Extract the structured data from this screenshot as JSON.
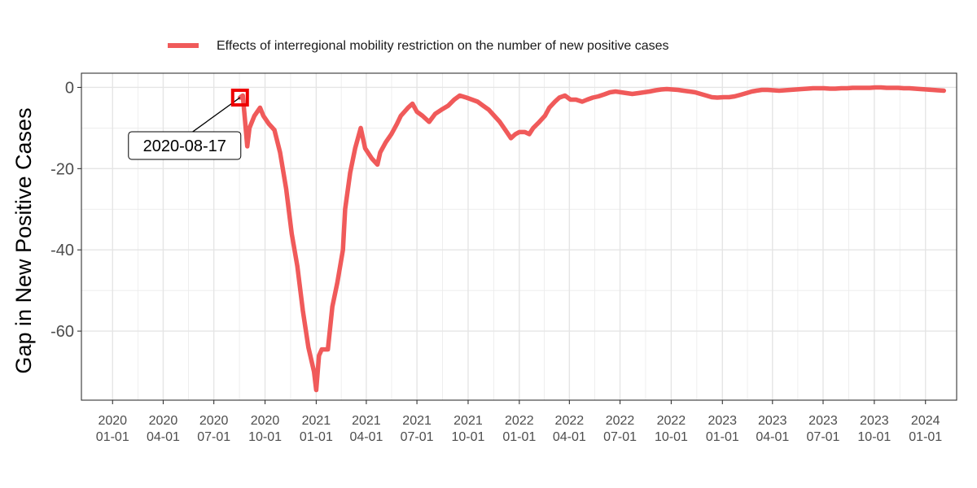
{
  "chart_data": {
    "type": "line",
    "title": "",
    "xlabel": "",
    "ylabel": "Gap in New Positive Cases",
    "ylim": [
      -77,
      3.5
    ],
    "xlim": [
      "2019-11-06",
      "2024-02-26"
    ],
    "yticks": [
      0,
      -20,
      -40,
      -60
    ],
    "ytick_labels": [
      "0",
      "-20",
      "-40",
      "-60"
    ],
    "xticks": [
      {
        "date": "2020-01-01",
        "line1": "2020",
        "line2": "01-01"
      },
      {
        "date": "2020-04-01",
        "line1": "2020",
        "line2": "04-01"
      },
      {
        "date": "2020-07-01",
        "line1": "2020",
        "line2": "07-01"
      },
      {
        "date": "2020-10-01",
        "line1": "2020",
        "line2": "10-01"
      },
      {
        "date": "2021-01-01",
        "line1": "2021",
        "line2": "01-01"
      },
      {
        "date": "2021-04-01",
        "line1": "2021",
        "line2": "04-01"
      },
      {
        "date": "2021-07-01",
        "line1": "2021",
        "line2": "07-01"
      },
      {
        "date": "2021-10-01",
        "line1": "2021",
        "line2": "10-01"
      },
      {
        "date": "2022-01-01",
        "line1": "2022",
        "line2": "01-01"
      },
      {
        "date": "2022-04-01",
        "line1": "2022",
        "line2": "04-01"
      },
      {
        "date": "2022-07-01",
        "line1": "2022",
        "line2": "07-01"
      },
      {
        "date": "2022-10-01",
        "line1": "2022",
        "line2": "10-01"
      },
      {
        "date": "2023-01-01",
        "line1": "2023",
        "line2": "01-01"
      },
      {
        "date": "2023-04-01",
        "line1": "2023",
        "line2": "04-01"
      },
      {
        "date": "2023-07-01",
        "line1": "2023",
        "line2": "07-01"
      },
      {
        "date": "2023-10-01",
        "line1": "2023",
        "line2": "10-01"
      },
      {
        "date": "2024-01-01",
        "line1": "2024",
        "line2": "01-01"
      }
    ],
    "grid": true,
    "legend_position": "top",
    "series": [
      {
        "name": "Effects of interregional mobility restriction on the number of new positive cases",
        "color": "#F05A5A",
        "points": [
          [
            "2020-08-17",
            -2.5
          ],
          [
            "2020-08-22",
            -2.0
          ],
          [
            "2020-08-26",
            -8
          ],
          [
            "2020-08-30",
            -14.5
          ],
          [
            "2020-09-03",
            -10
          ],
          [
            "2020-09-12",
            -7
          ],
          [
            "2020-09-22",
            -5
          ],
          [
            "2020-09-28",
            -7
          ],
          [
            "2020-10-08",
            -9
          ],
          [
            "2020-10-18",
            -10.5
          ],
          [
            "2020-10-28",
            -16
          ],
          [
            "2020-11-08",
            -25
          ],
          [
            "2020-11-18",
            -36
          ],
          [
            "2020-11-28",
            -44
          ],
          [
            "2020-12-08",
            -55
          ],
          [
            "2020-12-18",
            -64
          ],
          [
            "2020-12-28",
            -70
          ],
          [
            "2021-01-01",
            -74.5
          ],
          [
            "2021-01-06",
            -66
          ],
          [
            "2021-01-11",
            -64.5
          ],
          [
            "2021-01-22",
            -64.5
          ],
          [
            "2021-01-30",
            -54
          ],
          [
            "2021-02-08",
            -48
          ],
          [
            "2021-02-18",
            -40
          ],
          [
            "2021-02-22",
            -30
          ],
          [
            "2021-03-03",
            -21
          ],
          [
            "2021-03-12",
            -15
          ],
          [
            "2021-03-22",
            -10
          ],
          [
            "2021-03-30",
            -15
          ],
          [
            "2021-04-11",
            -17.5
          ],
          [
            "2021-04-21",
            -19
          ],
          [
            "2021-04-26",
            -16
          ],
          [
            "2021-05-06",
            -13.5
          ],
          [
            "2021-05-16",
            -11.5
          ],
          [
            "2021-05-26",
            -9
          ],
          [
            "2021-06-02",
            -7
          ],
          [
            "2021-06-15",
            -5
          ],
          [
            "2021-06-23",
            -4
          ],
          [
            "2021-07-01",
            -6
          ],
          [
            "2021-07-11",
            -7
          ],
          [
            "2021-07-23",
            -8.5
          ],
          [
            "2021-08-03",
            -6.5
          ],
          [
            "2021-08-14",
            -5.5
          ],
          [
            "2021-08-26",
            -4.5
          ],
          [
            "2021-09-06",
            -3
          ],
          [
            "2021-09-16",
            -2
          ],
          [
            "2021-09-28",
            -2.5
          ],
          [
            "2021-10-08",
            -3
          ],
          [
            "2021-10-18",
            -3.5
          ],
          [
            "2021-10-28",
            -4.5
          ],
          [
            "2021-11-07",
            -5.5
          ],
          [
            "2021-11-17",
            -7
          ],
          [
            "2021-11-27",
            -8.5
          ],
          [
            "2021-12-07",
            -10.5
          ],
          [
            "2021-12-17",
            -12.5
          ],
          [
            "2021-12-25",
            -11.5
          ],
          [
            "2022-01-01",
            -11
          ],
          [
            "2022-01-11",
            -11
          ],
          [
            "2022-01-19",
            -11.5
          ],
          [
            "2022-01-26",
            -10
          ],
          [
            "2022-02-06",
            -8.5
          ],
          [
            "2022-02-16",
            -7
          ],
          [
            "2022-02-24",
            -5
          ],
          [
            "2022-03-06",
            -3.5
          ],
          [
            "2022-03-14",
            -2.5
          ],
          [
            "2022-03-24",
            -2
          ],
          [
            "2022-04-03",
            -3
          ],
          [
            "2022-04-13",
            -3
          ],
          [
            "2022-04-24",
            -3.5
          ],
          [
            "2022-05-03",
            -3
          ],
          [
            "2022-05-13",
            -2.5
          ],
          [
            "2022-05-23",
            -2.2
          ],
          [
            "2022-06-03",
            -1.7
          ],
          [
            "2022-06-13",
            -1.2
          ],
          [
            "2022-06-23",
            -1.0
          ],
          [
            "2022-07-03",
            -1.2
          ],
          [
            "2022-07-13",
            -1.4
          ],
          [
            "2022-07-23",
            -1.6
          ],
          [
            "2022-08-03",
            -1.4
          ],
          [
            "2022-08-13",
            -1.2
          ],
          [
            "2022-08-23",
            -1.0
          ],
          [
            "2022-09-03",
            -0.7
          ],
          [
            "2022-09-13",
            -0.5
          ],
          [
            "2022-09-23",
            -0.4
          ],
          [
            "2022-10-03",
            -0.5
          ],
          [
            "2022-10-13",
            -0.6
          ],
          [
            "2022-10-23",
            -0.8
          ],
          [
            "2022-11-03",
            -1.0
          ],
          [
            "2022-11-13",
            -1.2
          ],
          [
            "2022-11-23",
            -1.6
          ],
          [
            "2022-12-03",
            -2.0
          ],
          [
            "2022-12-13",
            -2.4
          ],
          [
            "2022-12-23",
            -2.5
          ],
          [
            "2023-01-03",
            -2.4
          ],
          [
            "2023-01-13",
            -2.4
          ],
          [
            "2023-01-23",
            -2.2
          ],
          [
            "2023-02-03",
            -1.8
          ],
          [
            "2023-02-13",
            -1.4
          ],
          [
            "2023-02-23",
            -1.0
          ],
          [
            "2023-03-03",
            -0.8
          ],
          [
            "2023-03-13",
            -0.6
          ],
          [
            "2023-03-23",
            -0.6
          ],
          [
            "2023-04-03",
            -0.7
          ],
          [
            "2023-04-13",
            -0.8
          ],
          [
            "2023-04-23",
            -0.7
          ],
          [
            "2023-05-03",
            -0.6
          ],
          [
            "2023-05-13",
            -0.5
          ],
          [
            "2023-05-23",
            -0.4
          ],
          [
            "2023-06-03",
            -0.3
          ],
          [
            "2023-06-13",
            -0.2
          ],
          [
            "2023-06-23",
            -0.2
          ],
          [
            "2023-07-03",
            -0.2
          ],
          [
            "2023-07-13",
            -0.3
          ],
          [
            "2023-07-23",
            -0.3
          ],
          [
            "2023-08-03",
            -0.2
          ],
          [
            "2023-08-13",
            -0.2
          ],
          [
            "2023-08-23",
            -0.1
          ],
          [
            "2023-09-03",
            -0.1
          ],
          [
            "2023-09-13",
            -0.1
          ],
          [
            "2023-09-23",
            -0.1
          ],
          [
            "2023-10-03",
            0.0
          ],
          [
            "2023-10-13",
            0.0
          ],
          [
            "2023-10-23",
            -0.1
          ],
          [
            "2023-11-03",
            -0.1
          ],
          [
            "2023-11-13",
            -0.1
          ],
          [
            "2023-11-23",
            -0.2
          ],
          [
            "2023-12-03",
            -0.2
          ],
          [
            "2023-12-13",
            -0.3
          ],
          [
            "2023-12-23",
            -0.4
          ],
          [
            "2024-01-03",
            -0.5
          ],
          [
            "2024-01-13",
            -0.6
          ],
          [
            "2024-01-23",
            -0.7
          ],
          [
            "2024-02-03",
            -0.8
          ]
        ]
      }
    ],
    "annotations": [
      {
        "label": "2020-08-17",
        "x": "2020-08-17",
        "y": -2.5,
        "marker": "square",
        "marker_color": "#EE0000"
      }
    ]
  }
}
